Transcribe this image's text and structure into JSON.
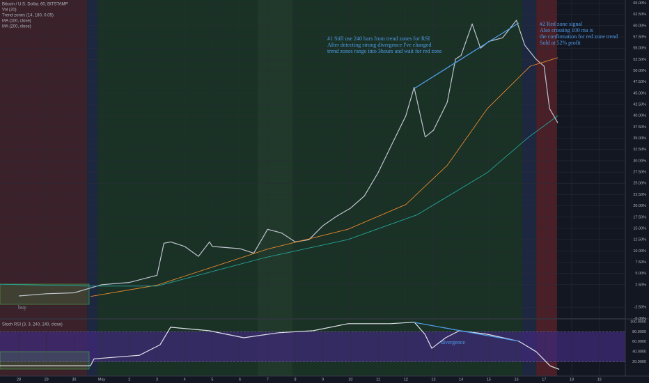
{
  "legend": {
    "title": "Bitcoin / U.S. Dollar, 60, BITSTAMP",
    "indicators": [
      "Vol (20)",
      "Trend zones (14, 180, 0.05)"
    ]
  },
  "chart_data": [
    {
      "type": "line",
      "xlim": [
        -0.68,
        21.94
      ],
      "ylim": [
        -5.1,
        65.7
      ],
      "xticks": [
        {
          "value": 0,
          "label": "28"
        },
        {
          "value": 1,
          "label": "29"
        },
        {
          "value": 2,
          "label": "30"
        },
        {
          "value": 3,
          "label": "May"
        },
        {
          "value": 4,
          "label": "2"
        },
        {
          "value": 5,
          "label": "3"
        },
        {
          "value": 6,
          "label": "4"
        },
        {
          "value": 7,
          "label": "5"
        },
        {
          "value": 8,
          "label": "6"
        },
        {
          "value": 9,
          "label": "7"
        },
        {
          "value": 10,
          "label": "8"
        },
        {
          "value": 11,
          "label": "9"
        },
        {
          "value": 12,
          "label": "10"
        },
        {
          "value": 13,
          "label": "11"
        },
        {
          "value": 14,
          "label": "12"
        },
        {
          "value": 15,
          "label": "13"
        },
        {
          "value": 16,
          "label": "14"
        },
        {
          "value": 17,
          "label": "15"
        },
        {
          "value": 18,
          "label": "16"
        },
        {
          "value": 19,
          "label": "17"
        },
        {
          "value": 20,
          "label": "18"
        },
        {
          "value": 21,
          "label": "19"
        }
      ],
      "yticks": [
        {
          "value": 65,
          "label": "65.00%"
        },
        {
          "value": 62.5,
          "label": "62.50%"
        },
        {
          "value": 60,
          "label": "60.00%"
        },
        {
          "value": 57.5,
          "label": "57.50%"
        },
        {
          "value": 55,
          "label": "55.00%"
        },
        {
          "value": 52.5,
          "label": "52.50%"
        },
        {
          "value": 50,
          "label": "50.00%"
        },
        {
          "value": 47.5,
          "label": "47.50%"
        },
        {
          "value": 45,
          "label": "45.00%"
        },
        {
          "value": 42.5,
          "label": "42.50%"
        },
        {
          "value": 40,
          "label": "40.00%"
        },
        {
          "value": 37.5,
          "label": "37.50%"
        },
        {
          "value": 35,
          "label": "35.00%"
        },
        {
          "value": 32.5,
          "label": "32.50%"
        },
        {
          "value": 30,
          "label": "30.00%"
        },
        {
          "value": 27.5,
          "label": "27.50%"
        },
        {
          "value": 25,
          "label": "25.00%"
        },
        {
          "value": 22.5,
          "label": "22.50%"
        },
        {
          "value": 20,
          "label": "20.00%"
        },
        {
          "value": 17.5,
          "label": "17.50%"
        },
        {
          "value": 15,
          "label": "15.00%"
        },
        {
          "value": 12.5,
          "label": "12.50%"
        },
        {
          "value": 10,
          "label": "10.00%"
        },
        {
          "value": 7.5,
          "label": "7.50%"
        },
        {
          "value": 5,
          "label": "5.00%"
        },
        {
          "value": 2.5,
          "label": "2.50%"
        },
        {
          "value": -2.5,
          "label": "-2.50%"
        },
        {
          "value": -5,
          "label": "-5.00%"
        }
      ],
      "grid": true,
      "zones": [
        {
          "x": [
            -0.68,
            2.47
          ],
          "color": "#3b2129"
        },
        {
          "x": [
            2.47,
            2.85
          ],
          "color": "#1e2740"
        },
        {
          "x": [
            2.85,
            8.64
          ],
          "color": "#1a3125"
        },
        {
          "x": [
            8.64,
            9.9
          ],
          "color": "#21392b"
        },
        {
          "x": [
            9.9,
            18.21
          ],
          "color": "#1a3125"
        },
        {
          "x": [
            18.21,
            18.72
          ],
          "color": "#1e2740"
        },
        {
          "x": [
            18.72,
            19.47
          ],
          "color": "#4a1f28"
        }
      ],
      "series": [
        {
          "name": "Bitcoin / U.S. Dollar, 60, BITSTAMP",
          "color": "#c0c6d0",
          "x": [
            0,
            1,
            2,
            3,
            4,
            5,
            5.25,
            5.5,
            6,
            6.5,
            6.9,
            7,
            8,
            8.5,
            9,
            9.5,
            10,
            10.5,
            11,
            11.5,
            12,
            12.5,
            13,
            13.5,
            14,
            14.3,
            14.7,
            15,
            15.5,
            15.8,
            16,
            16.4,
            16.7,
            17,
            17.5,
            18,
            18.3,
            18.7,
            19,
            19.2,
            19.5
          ],
          "values": [
            0,
            0.5,
            0.7,
            2.5,
            3,
            4.6,
            11.7,
            12,
            11,
            8.8,
            12,
            11,
            10.5,
            9.5,
            14.8,
            14,
            12,
            12.5,
            15.6,
            17.7,
            19.5,
            22.2,
            27.4,
            33.7,
            40,
            46.3,
            35.3,
            36.8,
            43,
            52.6,
            53.4,
            60.4,
            55,
            56.5,
            57.3,
            61.2,
            55.7,
            52.6,
            51,
            41.6,
            38.4
          ]
        },
        {
          "name": "MA (100, close)",
          "color": "#e8892e",
          "x": [
            2.6,
            5,
            9,
            11.9,
            14,
            15.5,
            16.95,
            18.5,
            19.5
          ],
          "values": [
            -0.1,
            2.4,
            10.4,
            14.8,
            20.3,
            29,
            41.6,
            51,
            52.9
          ]
        },
        {
          "name": "MA (200, close)",
          "color": "#26a69a",
          "x": [
            -0.68,
            2.6,
            5,
            8.9,
            11.9,
            14.4,
            16.95,
            18.45,
            19.5
          ],
          "values": [
            2.6,
            2.2,
            2.2,
            8.5,
            12.5,
            18,
            27.4,
            35.3,
            40
          ]
        }
      ],
      "annotations": [
        [
          "#1 Still use 240 bars from trend zones for RSI",
          "After detecting strong divergence I've changed",
          "trend zones range into 3hours and wait for red zone"
        ],
        [
          "#2 Red zone signal",
          "Also crossing 100 ma is",
          "the confirmation for red zone trend",
          "Sold at 52% profit"
        ],
        [
          "buy"
        ]
      ]
    },
    {
      "type": "line",
      "title": "Stoch RSI (3, 3, 240, 240, close)",
      "xlim": [
        -0.68,
        21.94
      ],
      "ylim": [
        -8.3,
        105.5
      ],
      "yticks": [
        {
          "value": 100,
          "label": "100.0000"
        },
        {
          "value": 80,
          "label": "80.0000"
        },
        {
          "value": 60,
          "label": "60.0000"
        },
        {
          "value": 40,
          "label": "40.0000"
        },
        {
          "value": 20,
          "label": "20.0000"
        }
      ],
      "band": [
        20,
        80
      ],
      "band_color": "#3f2a78",
      "color": "#e0e3eb",
      "x": [
        -0.68,
        2.59,
        2.72,
        4.36,
        5.11,
        5.49,
        6.88,
        8.14,
        9.4,
        10.65,
        11.91,
        13.43,
        14.31,
        14.69,
        14.94,
        15.44,
        15.94,
        16.95,
        18.09,
        18.72,
        19.22,
        19.55
      ],
      "values": [
        12,
        12,
        26,
        33,
        54,
        89,
        82,
        68,
        78,
        82,
        96,
        96,
        99,
        75,
        47,
        68,
        82,
        75,
        61,
        40,
        12,
        5
      ],
      "annotations": [
        [
          "divergence"
        ]
      ]
    }
  ]
}
